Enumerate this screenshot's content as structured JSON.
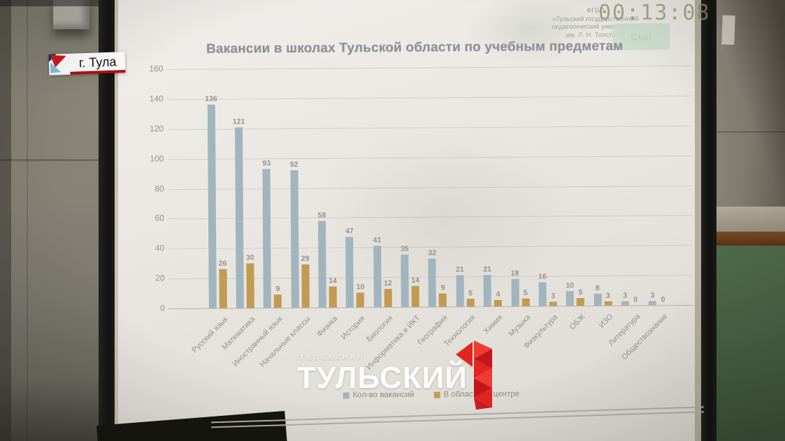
{
  "colors": {
    "accent_red": "#d2131c",
    "bar_blue": "#a0b5bd",
    "bar_gold": "#c29a52"
  },
  "overlay": {
    "location_badge": "г. Тула",
    "watermark_kicker": "ТЕЛЕКАНАЛ",
    "watermark_title": "ТУЛЬСКИЙ"
  },
  "slide": {
    "timestamp": "00:13:08",
    "org_lines": [
      "ФГБО",
      "«Тульский государственный",
      "педагогический университет",
      "им. Л. Н. Толстого»"
    ],
    "stop_label": "Стоп",
    "title": "Вакансии в школах Тульской области по учебным предметам"
  },
  "chart_data": {
    "type": "bar",
    "title": "Вакансии в школах Тульской области по учебным предметам",
    "categories": [
      "Русский язык",
      "Математика",
      "Иностранный язык",
      "Начальные классы",
      "Физика",
      "История",
      "Биология",
      "Информатика и ИКТ",
      "География",
      "Технология",
      "Химия",
      "Музыка",
      "Физкультура",
      "ОБЖ",
      "ИЗО",
      "Литература",
      "Обществознание"
    ],
    "series": [
      {
        "name": "Кол-во вакансий",
        "color": "#a0b5bd",
        "values": [
          136,
          121,
          93,
          92,
          58,
          47,
          41,
          35,
          32,
          21,
          21,
          18,
          16,
          10,
          8,
          3,
          3
        ]
      },
      {
        "name": "В областном центре",
        "color": "#c29a52",
        "values": [
          26,
          30,
          9,
          29,
          14,
          10,
          12,
          14,
          9,
          5,
          4,
          5,
          3,
          5,
          3,
          0,
          0
        ]
      }
    ],
    "ylim": [
      0,
      160
    ],
    "ytick_step": 20,
    "grid": true,
    "legend_position": "bottom",
    "value_labels": true
  }
}
